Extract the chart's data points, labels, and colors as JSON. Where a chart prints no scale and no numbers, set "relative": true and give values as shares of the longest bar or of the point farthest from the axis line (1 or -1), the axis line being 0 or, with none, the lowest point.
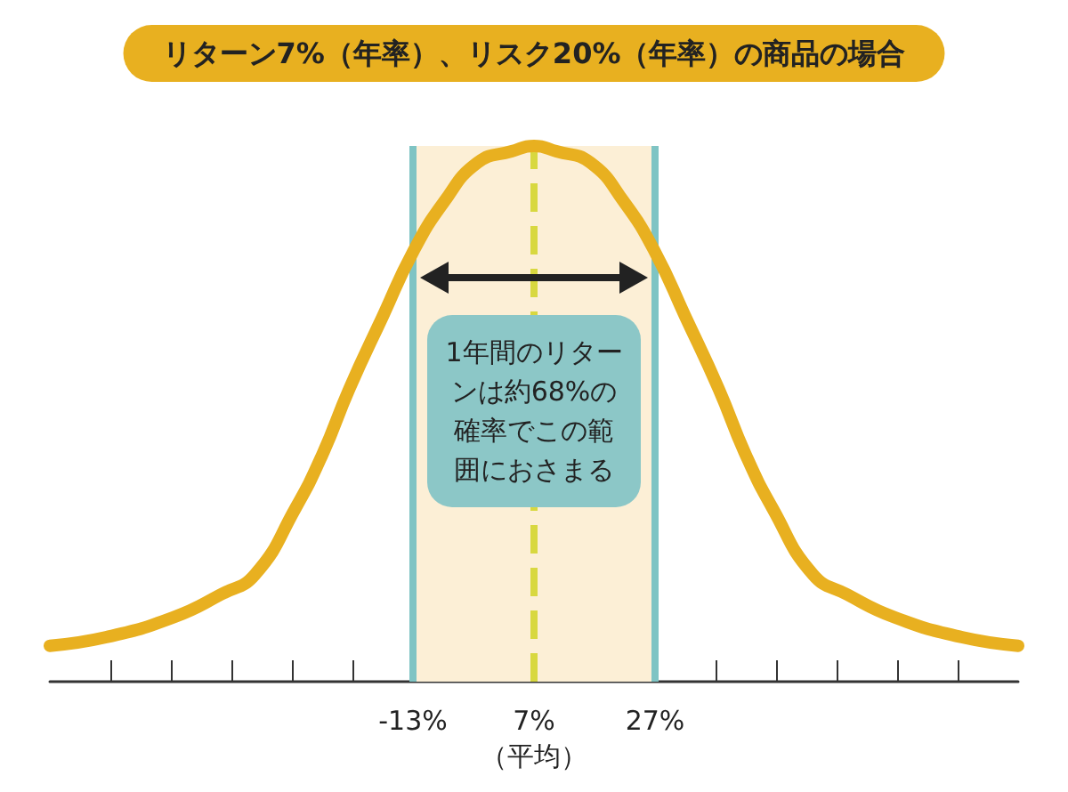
{
  "chart_data": {
    "type": "line",
    "title": "リターン7%（年率）、リスク20%（年率）の商品の場合",
    "relative": true,
    "line_style": "solid",
    "grid": false,
    "x": [
      -73,
      -63.7,
      -52.6,
      -44.7,
      -39.1,
      -32.4,
      -28,
      -23.5,
      -17.9,
      -13,
      -7.9,
      -2.3,
      3.3,
      7,
      10.7,
      16.3,
      21.9,
      27,
      31.9,
      37.5,
      42,
      46.4,
      53.1,
      58.7,
      66.6,
      77.7,
      87
    ],
    "series": [
      {
        "color": "#e8b020",
        "values": [
          0.067,
          0.083,
          0.12,
          0.163,
          0.2,
          0.324,
          0.423,
          0.547,
          0.684,
          0.802,
          0.895,
          0.969,
          0.99,
          1,
          0.99,
          0.969,
          0.895,
          0.802,
          0.684,
          0.547,
          0.423,
          0.324,
          0.2,
          0.163,
          0.12,
          0.083,
          0.067
        ]
      }
    ],
    "xlim": [
      -73,
      87
    ],
    "xticks": [
      {
        "value": -63,
        "label": null
      },
      {
        "value": -53,
        "label": null
      },
      {
        "value": -43,
        "label": null
      },
      {
        "value": -33,
        "label": null
      },
      {
        "value": -23,
        "label": null
      },
      {
        "value": -13,
        "label": "-13%"
      },
      {
        "value": -3,
        "label": null
      },
      {
        "value": 7,
        "label": "7%\n（平均）"
      },
      {
        "value": 17,
        "label": null
      },
      {
        "value": 27,
        "label": "27%"
      },
      {
        "value": 37,
        "label": null
      },
      {
        "value": 47,
        "label": null
      },
      {
        "value": 57,
        "label": null
      },
      {
        "value": 67,
        "label": null
      },
      {
        "value": 77,
        "label": null
      }
    ],
    "bands": [
      {
        "axis": "x",
        "from": -13,
        "to": 27,
        "color": "#fcefd6"
      }
    ],
    "ref_lines": [
      {
        "axis": "x",
        "value": -13,
        "color": "#7fc4c4",
        "line_style": "solid"
      },
      {
        "axis": "x",
        "value": 27,
        "color": "#7fc4c4",
        "line_style": "solid"
      },
      {
        "axis": "x",
        "value": 7,
        "color": "#d8d840",
        "line_style": "dashed"
      }
    ],
    "annotations": [
      "1年間のリターンは約68%の確率でこの範囲におさまる"
    ]
  }
}
